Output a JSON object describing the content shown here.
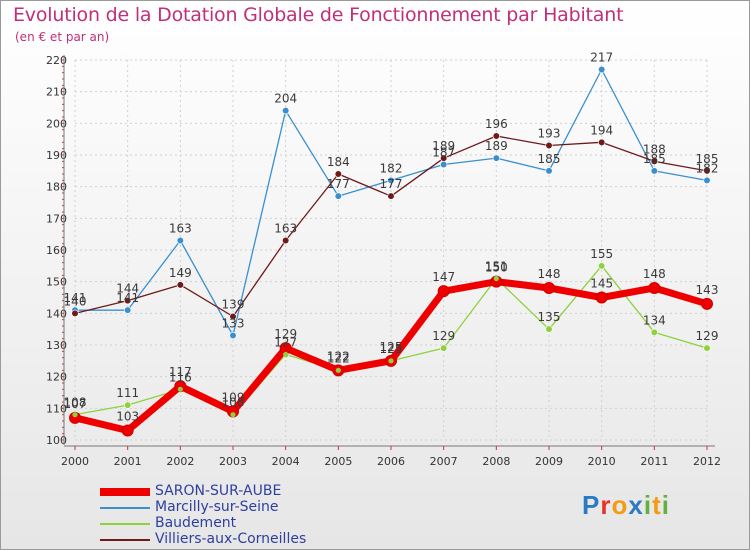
{
  "chart_data": {
    "type": "line",
    "title": "Evolution de la Dotation Globale de Fonctionnement par Habitant",
    "subtitle": "(en € et par an)",
    "categories": [
      "2000",
      "2001",
      "2002",
      "2003",
      "2004",
      "2005",
      "2006",
      "2007",
      "2008",
      "2009",
      "2010",
      "2011",
      "2012"
    ],
    "ylim": [
      100,
      220
    ],
    "yticks": [
      100,
      110,
      120,
      130,
      140,
      150,
      160,
      170,
      180,
      190,
      200,
      210,
      220
    ],
    "grid": true,
    "legend_position": "bottom-left",
    "series": [
      {
        "name": "SARON-SUR-AUBE",
        "color": "#ee0000",
        "values": [
          107,
          103,
          117,
          109,
          129,
          122,
          125,
          147,
          150,
          148,
          145,
          148,
          143
        ]
      },
      {
        "name": "Marcilly-sur-Seine",
        "color": "#3a8fd0",
        "values": [
          141,
          141,
          163,
          133,
          204,
          177,
          182,
          187,
          189,
          185,
          217,
          185,
          182
        ]
      },
      {
        "name": "Baudement",
        "color": "#8ed13e",
        "values": [
          108,
          111,
          116,
          108,
          127,
          122,
          125,
          129,
          151,
          135,
          155,
          134,
          129
        ]
      },
      {
        "name": "Villiers-aux-Corneilles",
        "color": "#6e1a1a",
        "values": [
          140,
          144,
          149,
          139,
          163,
          184,
          177,
          189,
          196,
          193,
          194,
          188,
          185
        ]
      }
    ]
  },
  "logo": {
    "text": "Proxiti",
    "letters": [
      "P",
      "r",
      "o",
      "x",
      "i",
      "t",
      "i"
    ],
    "colors": [
      "#2b7bc2",
      "#e5332a",
      "#f39c12",
      "#2b7bc2",
      "#62b13c",
      "#f39c12",
      "#62b13c"
    ]
  }
}
